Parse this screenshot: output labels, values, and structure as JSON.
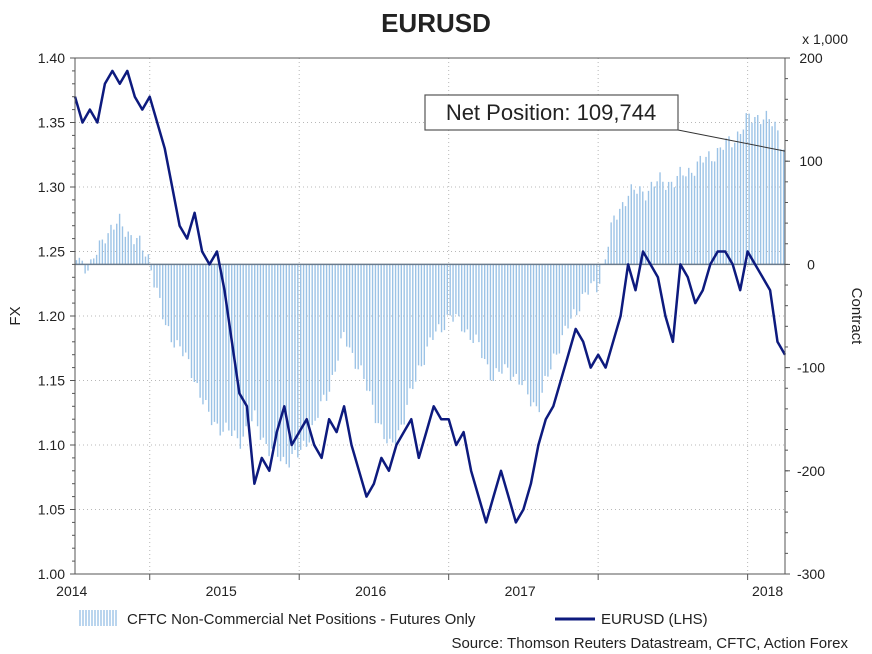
{
  "colors": {
    "eurusd_line": "#0d1a7e",
    "bars": "#9cc3e6",
    "grid": "#b8b8b8",
    "zero_line": "#6b7b8c",
    "axis": "#555555"
  },
  "chart_data": {
    "type": "line+bar",
    "title": "EURUSD",
    "left_axis": {
      "label": "FX",
      "ylim": [
        1.0,
        1.4
      ],
      "ticks": [
        "1.40",
        "1.35",
        "1.30",
        "1.25",
        "1.20",
        "1.15",
        "1.10",
        "1.05",
        "1.00"
      ]
    },
    "right_axis": {
      "label": "Contract",
      "unit_label": "x 1,000",
      "ylim": [
        -300,
        200
      ],
      "ticks": [
        "200",
        "100",
        "0",
        "-100",
        "-200",
        "-300"
      ]
    },
    "x_axis": {
      "range": [
        2013.5,
        2018.25
      ],
      "ticks": [
        {
          "label": "2014",
          "x": 2014.0
        },
        {
          "label": "2015",
          "x": 2015.0
        },
        {
          "label": "2016",
          "x": 2016.0
        },
        {
          "label": "2017",
          "x": 2017.0
        },
        {
          "label": "2018",
          "x": 2018.0
        }
      ]
    },
    "annotation": {
      "text": "Net Position: 109,744",
      "value_x": 2018.25,
      "value_y": 109.744
    },
    "legend": [
      {
        "name": "CFTC Non-Commercial Net Positions - Futures Only",
        "type": "bar"
      },
      {
        "name": "EURUSD (LHS)",
        "type": "line"
      }
    ],
    "source": "Source: Thomson Reuters Datastream, CFTC, Action Forex",
    "series": [
      {
        "name": "CFTC Non-Commercial Net Positions - Futures Only",
        "axis": "right",
        "x": [
          2013.5,
          2013.6,
          2013.7,
          2013.8,
          2013.9,
          2014.0,
          2014.1,
          2014.2,
          2014.3,
          2014.4,
          2014.5,
          2014.6,
          2014.7,
          2014.8,
          2014.9,
          2015.0,
          2015.1,
          2015.2,
          2015.3,
          2015.4,
          2015.5,
          2015.6,
          2015.7,
          2015.8,
          2015.9,
          2016.0,
          2016.1,
          2016.2,
          2016.3,
          2016.4,
          2016.5,
          2016.6,
          2016.7,
          2016.8,
          2016.9,
          2017.0,
          2017.1,
          2017.2,
          2017.3,
          2017.4,
          2017.5,
          2017.6,
          2017.7,
          2017.8,
          2017.9,
          2018.0,
          2018.1,
          2018.2,
          2018.25
        ],
        "values": [
          10,
          -5,
          30,
          40,
          25,
          5,
          -60,
          -80,
          -110,
          -150,
          -160,
          -170,
          -150,
          -180,
          -190,
          -185,
          -155,
          -120,
          -70,
          -100,
          -140,
          -180,
          -150,
          -100,
          -70,
          -50,
          -60,
          -80,
          -110,
          -100,
          -120,
          -140,
          -90,
          -60,
          -30,
          -20,
          40,
          70,
          70,
          80,
          80,
          90,
          100,
          110,
          120,
          140,
          145,
          130,
          110
        ]
      },
      {
        "name": "EURUSD (LHS)",
        "axis": "left",
        "x": [
          2013.5,
          2013.55,
          2013.6,
          2013.65,
          2013.7,
          2013.75,
          2013.8,
          2013.85,
          2013.9,
          2013.95,
          2014.0,
          2014.05,
          2014.1,
          2014.15,
          2014.2,
          2014.25,
          2014.3,
          2014.35,
          2014.4,
          2014.45,
          2014.5,
          2014.55,
          2014.6,
          2014.65,
          2014.7,
          2014.75,
          2014.8,
          2014.85,
          2014.9,
          2014.95,
          2015.0,
          2015.05,
          2015.1,
          2015.15,
          2015.2,
          2015.25,
          2015.3,
          2015.35,
          2015.4,
          2015.45,
          2015.5,
          2015.55,
          2015.6,
          2015.65,
          2015.7,
          2015.75,
          2015.8,
          2015.85,
          2015.9,
          2015.95,
          2016.0,
          2016.05,
          2016.1,
          2016.15,
          2016.2,
          2016.25,
          2016.3,
          2016.35,
          2016.4,
          2016.45,
          2016.5,
          2016.55,
          2016.6,
          2016.65,
          2016.7,
          2016.75,
          2016.8,
          2016.85,
          2016.9,
          2016.95,
          2017.0,
          2017.05,
          2017.1,
          2017.15,
          2017.2,
          2017.25,
          2017.3,
          2017.35,
          2017.4,
          2017.45,
          2017.5,
          2017.55,
          2017.6,
          2017.65,
          2017.7,
          2017.75,
          2017.8,
          2017.85,
          2017.9,
          2017.95,
          2018.0,
          2018.05,
          2018.1,
          2018.15,
          2018.2,
          2018.25
        ],
        "values": [
          1.37,
          1.35,
          1.36,
          1.35,
          1.38,
          1.39,
          1.38,
          1.39,
          1.37,
          1.36,
          1.37,
          1.35,
          1.33,
          1.3,
          1.27,
          1.26,
          1.28,
          1.25,
          1.24,
          1.25,
          1.22,
          1.18,
          1.14,
          1.13,
          1.07,
          1.09,
          1.08,
          1.11,
          1.13,
          1.1,
          1.11,
          1.12,
          1.1,
          1.09,
          1.12,
          1.11,
          1.13,
          1.1,
          1.08,
          1.06,
          1.07,
          1.09,
          1.08,
          1.1,
          1.11,
          1.12,
          1.09,
          1.11,
          1.13,
          1.12,
          1.12,
          1.1,
          1.11,
          1.08,
          1.06,
          1.04,
          1.06,
          1.08,
          1.06,
          1.04,
          1.05,
          1.07,
          1.1,
          1.12,
          1.13,
          1.15,
          1.17,
          1.19,
          1.18,
          1.16,
          1.17,
          1.16,
          1.18,
          1.2,
          1.24,
          1.22,
          1.25,
          1.24,
          1.23,
          1.2,
          1.18,
          1.24,
          1.23,
          1.21,
          1.22,
          1.24,
          1.25,
          1.25,
          1.24,
          1.22,
          1.25,
          1.24,
          1.23,
          1.22,
          1.18,
          1.17
        ]
      }
    ]
  }
}
